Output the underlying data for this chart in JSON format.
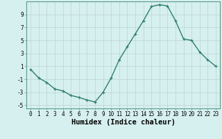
{
  "x": [
    0,
    1,
    2,
    3,
    4,
    5,
    6,
    7,
    8,
    9,
    10,
    11,
    12,
    13,
    14,
    15,
    16,
    17,
    18,
    19,
    20,
    21,
    22,
    23
  ],
  "y": [
    0.5,
    -0.8,
    -1.5,
    -2.5,
    -2.8,
    -3.5,
    -3.8,
    -4.2,
    -4.5,
    -3.0,
    -0.8,
    2.0,
    4.0,
    6.0,
    8.0,
    10.2,
    10.5,
    10.3,
    8.0,
    5.2,
    5.0,
    3.2,
    2.0,
    1.0
  ],
  "line_color": "#2e7d6e",
  "marker": "+",
  "marker_size": 3.5,
  "marker_linewidth": 0.9,
  "xlabel": "Humidex (Indice chaleur)",
  "bg_color": "#d6f0ef",
  "grid_color": "#c0d8d8",
  "xlim": [
    -0.5,
    23.5
  ],
  "ylim": [
    -5.5,
    11.0
  ],
  "yticks": [
    -5,
    -3,
    -1,
    1,
    3,
    5,
    7,
    9
  ],
  "xticks": [
    0,
    1,
    2,
    3,
    4,
    5,
    6,
    7,
    8,
    9,
    10,
    11,
    12,
    13,
    14,
    15,
    16,
    17,
    18,
    19,
    20,
    21,
    22,
    23
  ],
  "xtick_labels": [
    "0",
    "1",
    "2",
    "3",
    "4",
    "5",
    "6",
    "7",
    "8",
    "9",
    "10",
    "11",
    "12",
    "13",
    "14",
    "15",
    "16",
    "17",
    "18",
    "19",
    "20",
    "21",
    "22",
    "23"
  ],
  "tick_fontsize": 5.5,
  "label_fontsize": 7.5,
  "linewidth": 1.0
}
